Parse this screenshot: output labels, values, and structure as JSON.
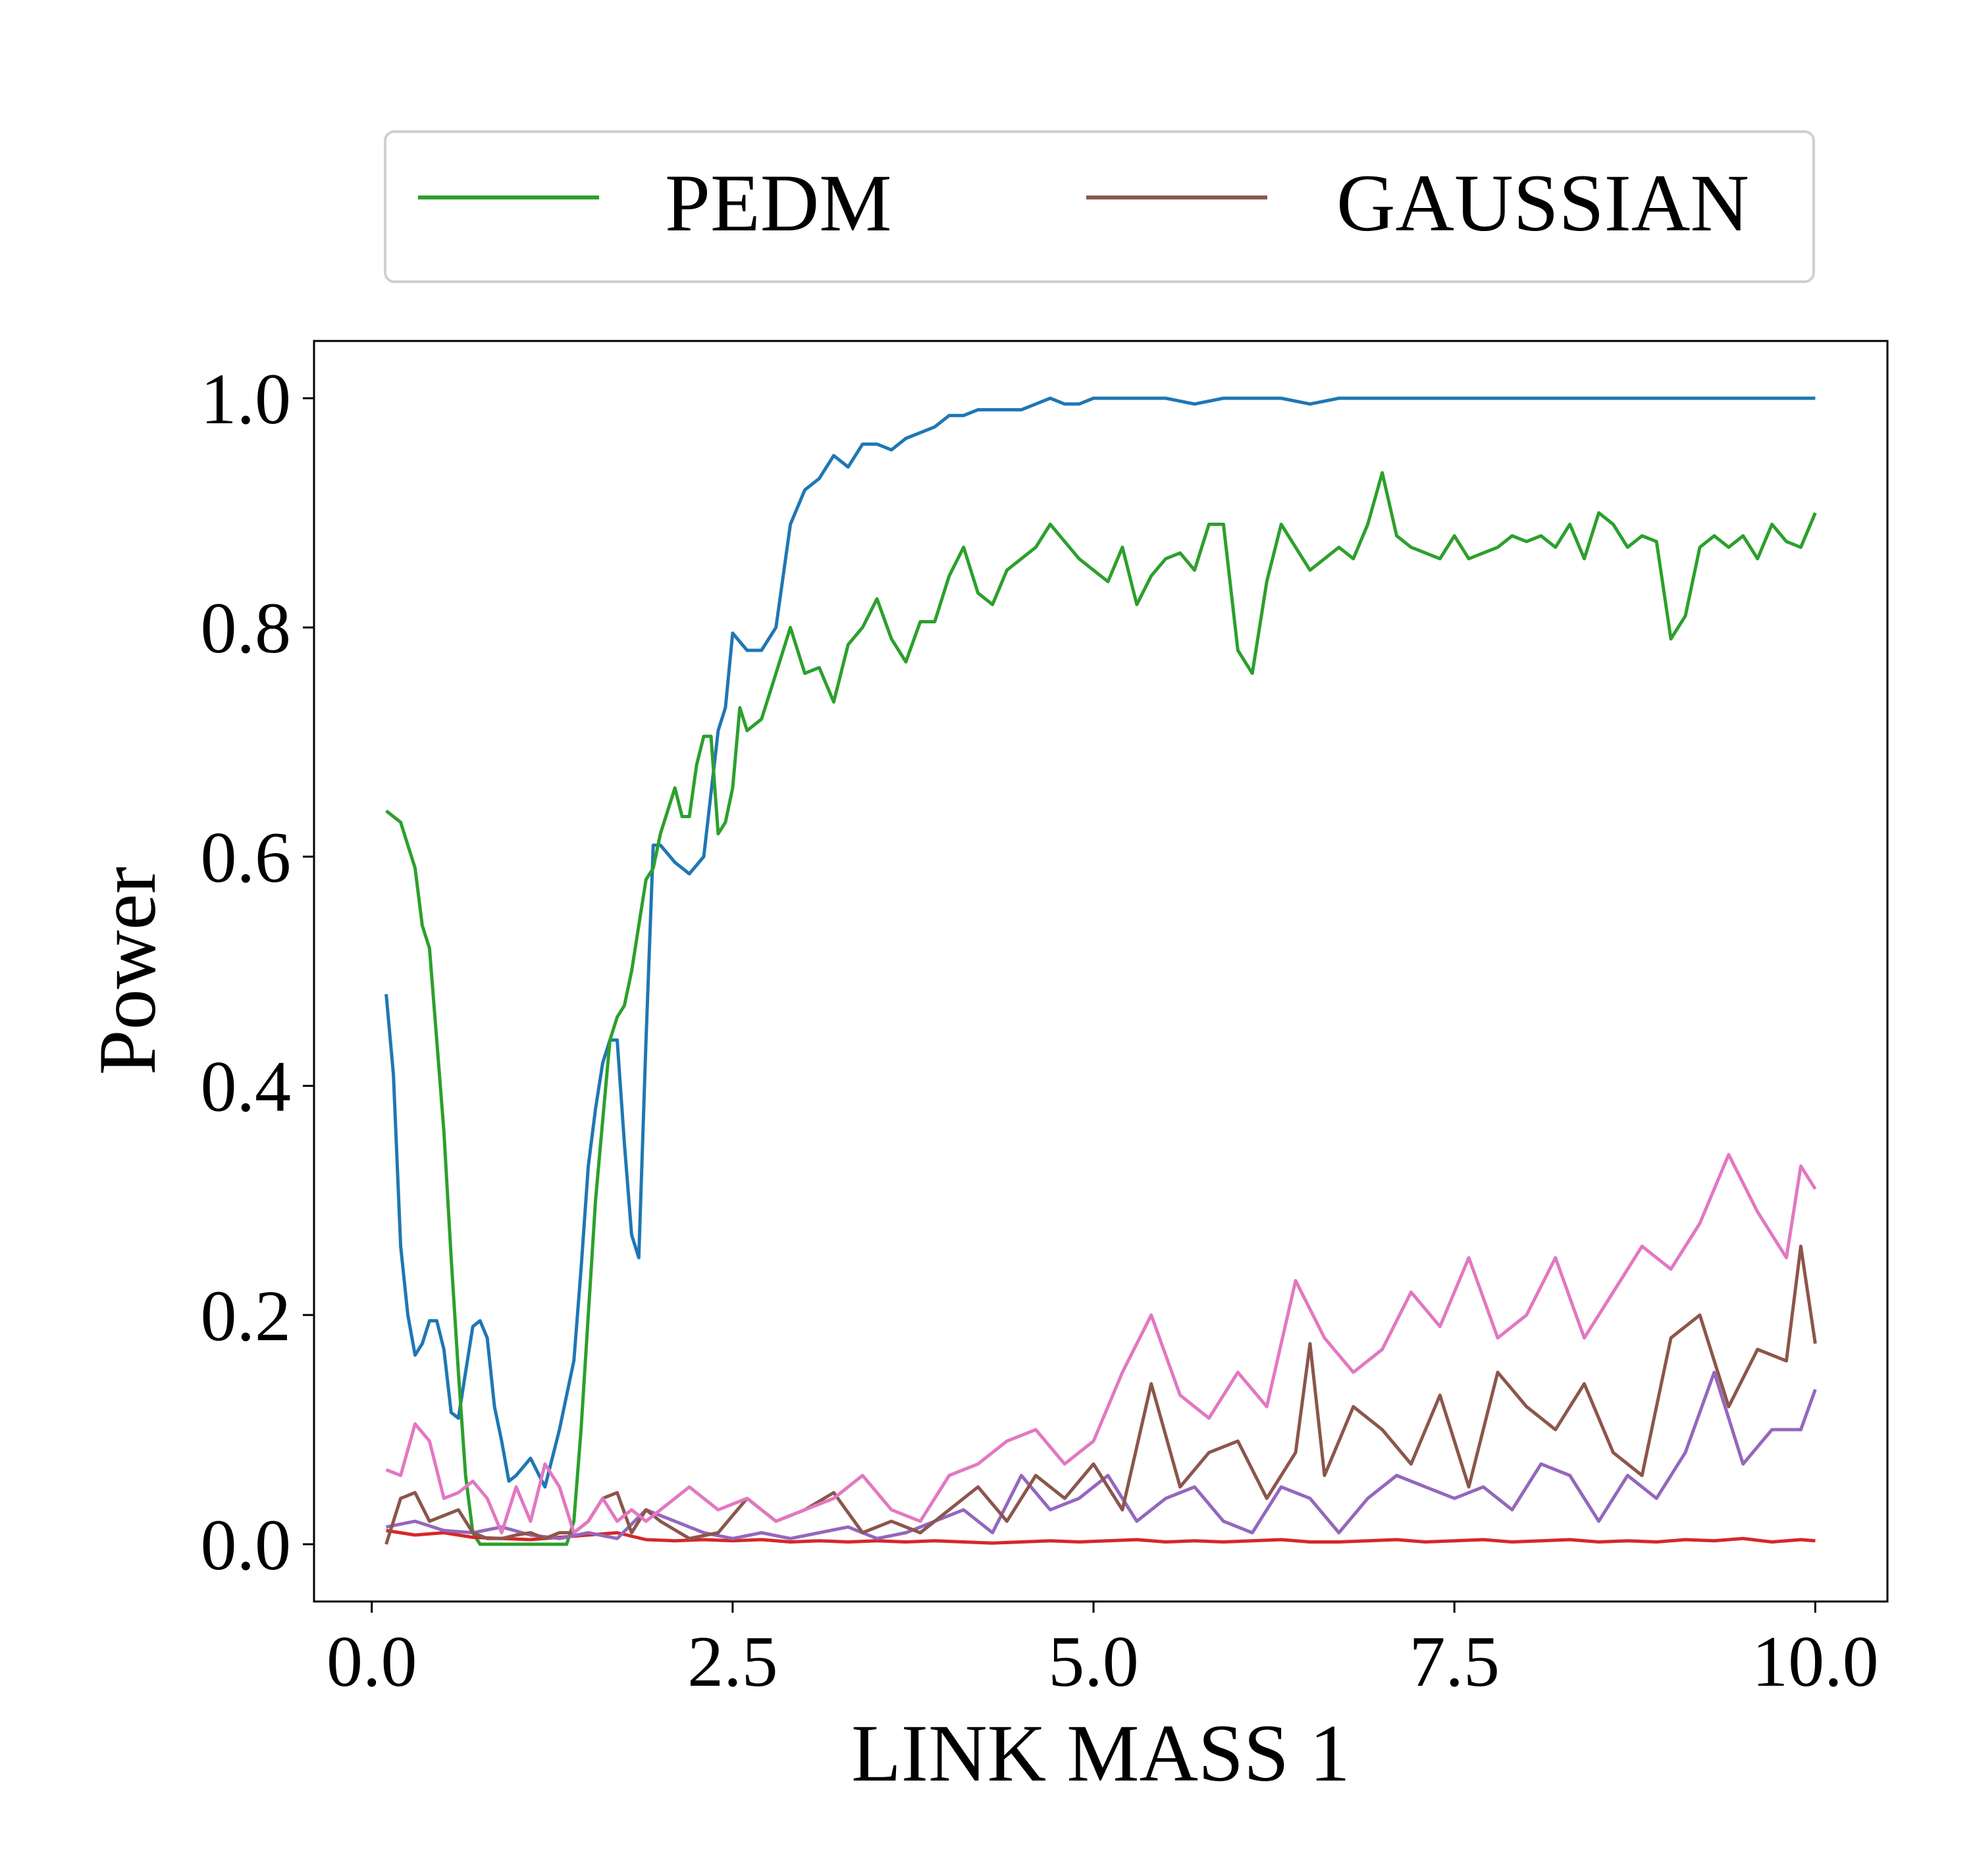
{
  "chart_data": {
    "type": "line",
    "xlabel": "LINK MASS 1",
    "ylabel": "Power",
    "xlim": [
      -0.4,
      10.5
    ],
    "ylim": [
      -0.05,
      1.05
    ],
    "xticks": [
      "0.0",
      "2.5",
      "5.0",
      "7.5",
      "10.0"
    ],
    "yticks": [
      "0.0",
      "0.2",
      "0.4",
      "0.6",
      "0.8",
      "1.0"
    ],
    "grid": false,
    "legend_position": "top-center, above plot",
    "legend": [
      {
        "name": "PEDM",
        "color": "#2ca02c"
      },
      {
        "name": "GAUSSIAN",
        "color": "#8c564b"
      }
    ],
    "series": [
      {
        "color": "#1f77b4",
        "x": [
          0.1,
          0.15,
          0.2,
          0.25,
          0.3,
          0.35,
          0.4,
          0.45,
          0.5,
          0.55,
          0.6,
          0.65,
          0.7,
          0.75,
          0.8,
          0.85,
          0.9,
          0.95,
          1.0,
          1.1,
          1.2,
          1.3,
          1.35,
          1.4,
          1.45,
          1.5,
          1.55,
          1.6,
          1.65,
          1.7,
          1.75,
          1.8,
          1.85,
          1.9,
          1.95,
          2.0,
          2.1,
          2.2,
          2.3,
          2.4,
          2.45,
          2.5,
          2.6,
          2.7,
          2.8,
          2.9,
          3.0,
          3.1,
          3.2,
          3.3,
          3.4,
          3.5,
          3.6,
          3.7,
          3.8,
          3.9,
          4.0,
          4.1,
          4.2,
          4.3,
          4.4,
          4.5,
          4.6,
          4.7,
          4.8,
          4.9,
          5.0,
          5.1,
          5.3,
          5.5,
          5.7,
          5.9,
          6.1,
          6.3,
          6.5,
          6.7,
          6.9,
          7.1,
          7.5,
          8.0,
          8.5,
          9.0,
          9.5,
          10.0
        ],
        "y": [
          0.48,
          0.41,
          0.26,
          0.2,
          0.165,
          0.175,
          0.195,
          0.195,
          0.17,
          0.115,
          0.11,
          0.15,
          0.19,
          0.195,
          0.18,
          0.12,
          0.09,
          0.055,
          0.06,
          0.075,
          0.05,
          0.1,
          0.13,
          0.16,
          0.24,
          0.33,
          0.38,
          0.42,
          0.44,
          0.44,
          0.35,
          0.27,
          0.25,
          0.44,
          0.61,
          0.61,
          0.595,
          0.585,
          0.6,
          0.71,
          0.73,
          0.795,
          0.78,
          0.78,
          0.8,
          0.89,
          0.92,
          0.93,
          0.95,
          0.94,
          0.96,
          0.96,
          0.955,
          0.965,
          0.97,
          0.975,
          0.985,
          0.985,
          0.99,
          0.99,
          0.99,
          0.99,
          0.995,
          1.0,
          0.995,
          0.995,
          1.0,
          1.0,
          1.0,
          1.0,
          0.995,
          1.0,
          1.0,
          1.0,
          0.995,
          1.0,
          1.0,
          1.0,
          1.0,
          1.0,
          1.0,
          1.0,
          1.0,
          1.0
        ]
      },
      {
        "name": "PEDM",
        "color": "#2ca02c",
        "x": [
          0.1,
          0.15,
          0.2,
          0.25,
          0.3,
          0.35,
          0.4,
          0.45,
          0.5,
          0.55,
          0.6,
          0.65,
          0.7,
          0.75,
          0.8,
          0.9,
          1.0,
          1.1,
          1.2,
          1.3,
          1.35,
          1.4,
          1.45,
          1.5,
          1.55,
          1.6,
          1.65,
          1.7,
          1.75,
          1.8,
          1.85,
          1.9,
          1.95,
          2.0,
          2.05,
          2.1,
          2.15,
          2.2,
          2.25,
          2.3,
          2.35,
          2.4,
          2.45,
          2.5,
          2.55,
          2.6,
          2.7,
          2.8,
          2.9,
          3.0,
          3.1,
          3.2,
          3.3,
          3.4,
          3.5,
          3.6,
          3.7,
          3.8,
          3.9,
          4.0,
          4.1,
          4.2,
          4.3,
          4.4,
          4.5,
          4.6,
          4.7,
          4.8,
          4.9,
          5.0,
          5.1,
          5.2,
          5.3,
          5.4,
          5.5,
          5.6,
          5.7,
          5.8,
          5.9,
          6.0,
          6.1,
          6.2,
          6.3,
          6.4,
          6.5,
          6.6,
          6.7,
          6.8,
          6.9,
          7.0,
          7.1,
          7.2,
          7.3,
          7.4,
          7.5,
          7.6,
          7.7,
          7.8,
          7.9,
          8.0,
          8.1,
          8.2,
          8.3,
          8.4,
          8.5,
          8.6,
          8.7,
          8.8,
          8.9,
          9.0,
          9.1,
          9.2,
          9.3,
          9.4,
          9.5,
          9.6,
          9.7,
          9.8,
          9.9,
          10.0
        ],
        "y": [
          0.64,
          0.635,
          0.63,
          0.61,
          0.59,
          0.54,
          0.52,
          0.44,
          0.36,
          0.25,
          0.15,
          0.06,
          0.01,
          0.0,
          0.0,
          0.0,
          0.0,
          0.0,
          0.0,
          0.0,
          0.0,
          0.02,
          0.1,
          0.2,
          0.3,
          0.37,
          0.44,
          0.46,
          0.47,
          0.5,
          0.54,
          0.58,
          0.59,
          0.62,
          0.64,
          0.66,
          0.635,
          0.635,
          0.68,
          0.705,
          0.705,
          0.62,
          0.63,
          0.66,
          0.73,
          0.71,
          0.72,
          0.76,
          0.8,
          0.76,
          0.765,
          0.735,
          0.785,
          0.8,
          0.825,
          0.79,
          0.77,
          0.805,
          0.805,
          0.845,
          0.87,
          0.83,
          0.82,
          0.85,
          0.86,
          0.87,
          0.89,
          0.875,
          0.86,
          0.85,
          0.84,
          0.87,
          0.82,
          0.845,
          0.86,
          0.865,
          0.85,
          0.89,
          0.89,
          0.78,
          0.76,
          0.84,
          0.89,
          0.87,
          0.85,
          0.86,
          0.87,
          0.86,
          0.89,
          0.935,
          0.88,
          0.87,
          0.865,
          0.86,
          0.88,
          0.86,
          0.865,
          0.87,
          0.88,
          0.875,
          0.88,
          0.87,
          0.89,
          0.86,
          0.9,
          0.89,
          0.87,
          0.88,
          0.875,
          0.79,
          0.81,
          0.87,
          0.88,
          0.87,
          0.88,
          0.86,
          0.89,
          0.875,
          0.87,
          0.9
        ]
      },
      {
        "color": "#d62728",
        "x": [
          0.1,
          0.3,
          0.5,
          0.7,
          0.9,
          1.1,
          1.3,
          1.5,
          1.7,
          1.9,
          2.1,
          2.3,
          2.5,
          2.7,
          2.9,
          3.1,
          3.3,
          3.5,
          3.7,
          3.9,
          4.1,
          4.3,
          4.5,
          4.7,
          4.9,
          5.1,
          5.3,
          5.5,
          5.7,
          5.9,
          6.1,
          6.3,
          6.5,
          6.7,
          6.9,
          7.1,
          7.3,
          7.5,
          7.7,
          7.9,
          8.1,
          8.3,
          8.5,
          8.7,
          8.9,
          9.1,
          9.3,
          9.5,
          9.7,
          9.9,
          10.0
        ],
        "y": [
          0.012,
          0.008,
          0.01,
          0.006,
          0.005,
          0.004,
          0.006,
          0.008,
          0.01,
          0.004,
          0.003,
          0.004,
          0.003,
          0.004,
          0.002,
          0.003,
          0.002,
          0.003,
          0.002,
          0.003,
          0.002,
          0.001,
          0.002,
          0.003,
          0.002,
          0.003,
          0.004,
          0.002,
          0.003,
          0.002,
          0.003,
          0.004,
          0.002,
          0.002,
          0.003,
          0.004,
          0.002,
          0.003,
          0.004,
          0.002,
          0.003,
          0.004,
          0.002,
          0.003,
          0.002,
          0.004,
          0.003,
          0.005,
          0.002,
          0.004,
          0.003
        ]
      },
      {
        "color": "#9467bd",
        "x": [
          0.1,
          0.3,
          0.5,
          0.7,
          0.9,
          1.1,
          1.3,
          1.5,
          1.7,
          1.9,
          2.1,
          2.3,
          2.5,
          2.7,
          2.9,
          3.1,
          3.3,
          3.5,
          3.7,
          3.9,
          4.1,
          4.3,
          4.5,
          4.7,
          4.9,
          5.1,
          5.3,
          5.5,
          5.7,
          5.9,
          6.1,
          6.3,
          6.5,
          6.7,
          6.9,
          7.1,
          7.3,
          7.5,
          7.7,
          7.9,
          8.1,
          8.3,
          8.5,
          8.7,
          8.9,
          9.1,
          9.3,
          9.5,
          9.7,
          9.9,
          10.0
        ],
        "y": [
          0.015,
          0.02,
          0.012,
          0.01,
          0.015,
          0.008,
          0.005,
          0.01,
          0.005,
          0.03,
          0.02,
          0.01,
          0.005,
          0.01,
          0.005,
          0.01,
          0.015,
          0.005,
          0.01,
          0.02,
          0.03,
          0.01,
          0.06,
          0.03,
          0.04,
          0.06,
          0.02,
          0.04,
          0.05,
          0.02,
          0.01,
          0.05,
          0.04,
          0.01,
          0.04,
          0.06,
          0.05,
          0.04,
          0.05,
          0.03,
          0.07,
          0.06,
          0.02,
          0.06,
          0.04,
          0.08,
          0.15,
          0.07,
          0.1,
          0.1,
          0.135
        ]
      },
      {
        "name": "GAUSSIAN",
        "color": "#8c564b",
        "x": [
          0.1,
          0.2,
          0.3,
          0.4,
          0.5,
          0.6,
          0.7,
          0.8,
          0.9,
          1.0,
          1.1,
          1.2,
          1.3,
          1.4,
          1.5,
          1.6,
          1.7,
          1.8,
          1.9,
          2.0,
          2.2,
          2.4,
          2.6,
          2.8,
          3.0,
          3.2,
          3.4,
          3.6,
          3.8,
          4.0,
          4.2,
          4.4,
          4.6,
          4.8,
          5.0,
          5.2,
          5.4,
          5.6,
          5.8,
          6.0,
          6.2,
          6.4,
          6.5,
          6.6,
          6.8,
          7.0,
          7.2,
          7.4,
          7.6,
          7.8,
          8.0,
          8.2,
          8.4,
          8.6,
          8.8,
          9.0,
          9.2,
          9.4,
          9.6,
          9.8,
          9.9,
          10.0
        ],
        "y": [
          0.0,
          0.04,
          0.045,
          0.02,
          0.025,
          0.03,
          0.01,
          0.005,
          0.005,
          0.008,
          0.01,
          0.005,
          0.01,
          0.01,
          0.02,
          0.04,
          0.045,
          0.01,
          0.03,
          0.02,
          0.005,
          0.01,
          0.04,
          0.02,
          0.03,
          0.045,
          0.01,
          0.02,
          0.01,
          0.03,
          0.05,
          0.02,
          0.06,
          0.04,
          0.07,
          0.03,
          0.14,
          0.05,
          0.08,
          0.09,
          0.04,
          0.08,
          0.175,
          0.06,
          0.12,
          0.1,
          0.07,
          0.13,
          0.05,
          0.15,
          0.12,
          0.1,
          0.14,
          0.08,
          0.06,
          0.18,
          0.2,
          0.12,
          0.17,
          0.16,
          0.26,
          0.175
        ]
      },
      {
        "color": "#e377c2",
        "x": [
          0.1,
          0.2,
          0.3,
          0.4,
          0.5,
          0.6,
          0.7,
          0.8,
          0.9,
          1.0,
          1.1,
          1.2,
          1.3,
          1.4,
          1.5,
          1.6,
          1.7,
          1.8,
          1.9,
          2.0,
          2.2,
          2.4,
          2.6,
          2.8,
          3.0,
          3.2,
          3.4,
          3.6,
          3.8,
          4.0,
          4.2,
          4.4,
          4.6,
          4.8,
          5.0,
          5.2,
          5.4,
          5.6,
          5.8,
          6.0,
          6.2,
          6.4,
          6.6,
          6.8,
          7.0,
          7.2,
          7.4,
          7.6,
          7.8,
          8.0,
          8.2,
          8.4,
          8.6,
          8.8,
          9.0,
          9.2,
          9.4,
          9.6,
          9.8,
          9.9,
          10.0
        ],
        "y": [
          0.065,
          0.06,
          0.105,
          0.09,
          0.04,
          0.045,
          0.055,
          0.04,
          0.01,
          0.05,
          0.02,
          0.07,
          0.05,
          0.01,
          0.02,
          0.04,
          0.02,
          0.03,
          0.02,
          0.03,
          0.05,
          0.03,
          0.04,
          0.02,
          0.03,
          0.04,
          0.06,
          0.03,
          0.02,
          0.06,
          0.07,
          0.09,
          0.1,
          0.07,
          0.09,
          0.15,
          0.2,
          0.13,
          0.11,
          0.15,
          0.12,
          0.23,
          0.18,
          0.15,
          0.17,
          0.22,
          0.19,
          0.25,
          0.18,
          0.2,
          0.25,
          0.18,
          0.22,
          0.26,
          0.24,
          0.28,
          0.34,
          0.29,
          0.25,
          0.33,
          0.31
        ]
      }
    ]
  }
}
